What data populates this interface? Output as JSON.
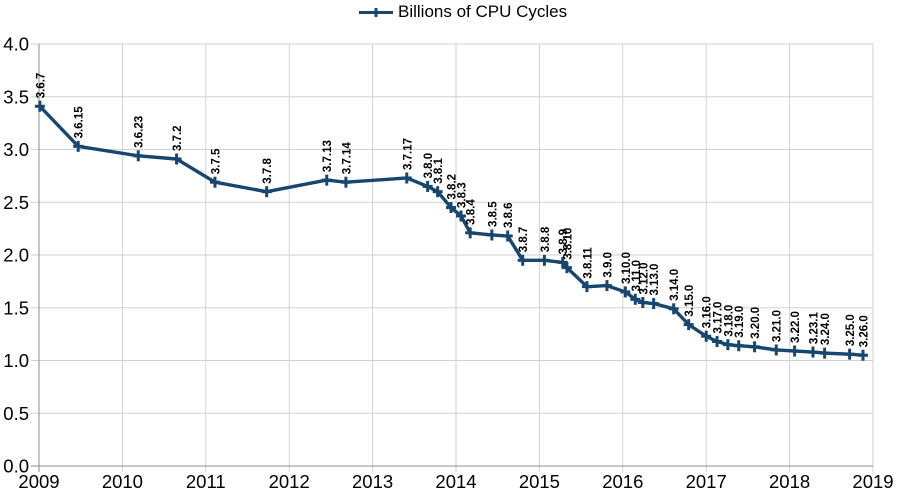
{
  "legend": {
    "label": "Billions of CPU Cycles"
  },
  "colors": {
    "series": "#17466e",
    "grid": "#d2d2d2",
    "axis": "#8e8e8e",
    "text": "#000000",
    "background": "#ffffff"
  },
  "chart_data": {
    "type": "line",
    "title": "",
    "legend": [
      "Billions of CPU Cycles"
    ],
    "legend_position": "top-center",
    "grid": true,
    "marker": "plus",
    "xlabel": "",
    "ylabel": "",
    "x_axis": {
      "min": 2009,
      "max": 2019,
      "tick_step": 1,
      "tick_labels": [
        "2009",
        "2010",
        "2011",
        "2012",
        "2013",
        "2014",
        "2015",
        "2016",
        "2017",
        "2018",
        "2019"
      ]
    },
    "y_axis": {
      "min": 0.0,
      "max": 4.0,
      "tick_step": 0.5,
      "tick_labels": [
        "0.0",
        "0.5",
        "1.0",
        "1.5",
        "2.0",
        "2.5",
        "3.0",
        "3.5",
        "4.0"
      ]
    },
    "series": [
      {
        "name": "Billions of CPU Cycles",
        "color": "#17466e",
        "points": [
          {
            "label": "3.6.7",
            "year": 2009.01,
            "value": 3.41
          },
          {
            "label": "3.6.15",
            "year": 2009.47,
            "value": 3.03
          },
          {
            "label": "3.6.23",
            "year": 2010.19,
            "value": 2.94
          },
          {
            "label": "3.7.2",
            "year": 2010.65,
            "value": 2.91
          },
          {
            "label": "3.7.5",
            "year": 2011.11,
            "value": 2.69
          },
          {
            "label": "3.7.8",
            "year": 2011.73,
            "value": 2.6
          },
          {
            "label": "3.7.13",
            "year": 2012.45,
            "value": 2.71
          },
          {
            "label": "3.7.14",
            "year": 2012.68,
            "value": 2.69
          },
          {
            "label": "3.7.17",
            "year": 2013.41,
            "value": 2.73
          },
          {
            "label": "3.8.0",
            "year": 2013.66,
            "value": 2.65
          },
          {
            "label": "3.8.1",
            "year": 2013.78,
            "value": 2.6
          },
          {
            "label": "3.8.2",
            "year": 2013.94,
            "value": 2.45
          },
          {
            "label": "3.8.3",
            "year": 2014.06,
            "value": 2.37
          },
          {
            "label": "3.8.4",
            "year": 2014.17,
            "value": 2.21
          },
          {
            "label": "3.8.5",
            "year": 2014.43,
            "value": 2.19
          },
          {
            "label": "3.8.6",
            "year": 2014.62,
            "value": 2.18
          },
          {
            "label": "3.8.7",
            "year": 2014.8,
            "value": 1.95
          },
          {
            "label": "3.8.8",
            "year": 2015.06,
            "value": 1.95
          },
          {
            "label": "3.8.9",
            "year": 2015.28,
            "value": 1.93
          },
          {
            "label": "3.8.10",
            "year": 2015.33,
            "value": 1.88
          },
          {
            "label": "3.8.11",
            "year": 2015.57,
            "value": 1.7
          },
          {
            "label": "3.9.0",
            "year": 2015.81,
            "value": 1.71
          },
          {
            "label": "3.10.0",
            "year": 2016.03,
            "value": 1.65
          },
          {
            "label": "3.11.0",
            "year": 2016.15,
            "value": 1.58
          },
          {
            "label": "3.12.0",
            "year": 2016.24,
            "value": 1.55
          },
          {
            "label": "3.13.0",
            "year": 2016.37,
            "value": 1.54
          },
          {
            "label": "3.14.0",
            "year": 2016.61,
            "value": 1.49
          },
          {
            "label": "3.15.0",
            "year": 2016.79,
            "value": 1.34
          },
          {
            "label": "3.16.0",
            "year": 2017.0,
            "value": 1.23
          },
          {
            "label": "3.17.0",
            "year": 2017.13,
            "value": 1.18
          },
          {
            "label": "3.18.0",
            "year": 2017.26,
            "value": 1.15
          },
          {
            "label": "3.19.0",
            "year": 2017.39,
            "value": 1.14
          },
          {
            "label": "3.20.0",
            "year": 2017.58,
            "value": 1.13
          },
          {
            "label": "3.21.0",
            "year": 2017.84,
            "value": 1.1
          },
          {
            "label": "3.22.0",
            "year": 2018.06,
            "value": 1.09
          },
          {
            "label": "3.23.1",
            "year": 2018.28,
            "value": 1.08
          },
          {
            "label": "3.24.0",
            "year": 2018.42,
            "value": 1.07
          },
          {
            "label": "3.25.0",
            "year": 2018.72,
            "value": 1.06
          },
          {
            "label": "3.26.0",
            "year": 2018.88,
            "value": 1.05
          }
        ]
      }
    ]
  }
}
